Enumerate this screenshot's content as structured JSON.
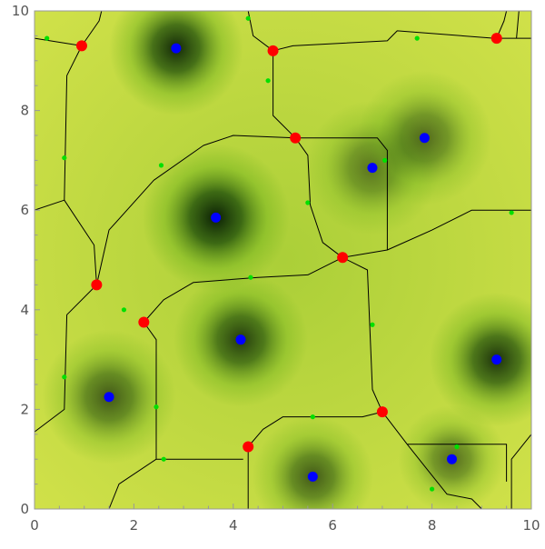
{
  "chart_data": {
    "type": "scatter",
    "title": "",
    "xlabel": "",
    "ylabel": "",
    "xlim": [
      0,
      10
    ],
    "ylim": [
      0,
      10
    ],
    "x_ticks": [
      "0",
      "2",
      "4",
      "6",
      "8",
      "10"
    ],
    "y_ticks": [
      "0",
      "2",
      "4",
      "6",
      "8",
      "10"
    ],
    "grid": false,
    "background": "yellow-green-black density field",
    "colors": {
      "yellow": "#f4f25a",
      "green": "#6fb21c",
      "dark": "#0b1f05",
      "maxima": "#0000ff",
      "saddles": "#ff0000",
      "minima": "#00e000",
      "ridge_lines": "#000000",
      "frame": "#999999"
    },
    "series": [
      {
        "marker": "blue-dot",
        "points": [
          [
            2.85,
            9.25
          ],
          [
            3.65,
            5.85
          ],
          [
            4.15,
            3.4
          ],
          [
            1.5,
            2.25
          ],
          [
            5.6,
            0.65
          ],
          [
            6.8,
            6.85
          ],
          [
            7.85,
            7.45
          ],
          [
            9.3,
            3.0
          ],
          [
            8.4,
            1.0
          ]
        ]
      },
      {
        "marker": "red-dot",
        "points": [
          [
            0.95,
            9.3
          ],
          [
            4.8,
            9.2
          ],
          [
            9.3,
            9.45
          ],
          [
            5.25,
            7.45
          ],
          [
            1.25,
            4.5
          ],
          [
            2.2,
            3.75
          ],
          [
            6.2,
            5.05
          ],
          [
            7.0,
            1.95
          ],
          [
            4.3,
            1.25
          ]
        ]
      },
      {
        "marker": "green-dot",
        "points": [
          [
            0.25,
            9.45
          ],
          [
            4.3,
            9.85
          ],
          [
            7.7,
            9.45
          ],
          [
            4.7,
            8.6
          ],
          [
            0.6,
            7.05
          ],
          [
            2.55,
            6.9
          ],
          [
            7.05,
            7.0
          ],
          [
            5.5,
            6.15
          ],
          [
            9.6,
            5.95
          ],
          [
            4.35,
            4.65
          ],
          [
            1.8,
            4.0
          ],
          [
            6.8,
            3.7
          ],
          [
            0.6,
            2.65
          ],
          [
            2.45,
            2.05
          ],
          [
            5.6,
            1.85
          ],
          [
            2.6,
            1.0
          ],
          [
            8.5,
            1.25
          ],
          [
            8.0,
            0.4
          ]
        ]
      }
    ],
    "ridge_lines": [
      [
        [
          0,
          9.45
        ],
        [
          0.95,
          9.3
        ],
        [
          1.3,
          9.8
        ],
        [
          1.35,
          10.0
        ]
      ],
      [
        [
          0.95,
          9.3
        ],
        [
          0.65,
          8.7
        ],
        [
          0.6,
          6.2
        ],
        [
          0,
          6.0
        ]
      ],
      [
        [
          0.6,
          6.2
        ],
        [
          1.2,
          5.3
        ],
        [
          1.25,
          4.5
        ]
      ],
      [
        [
          1.25,
          4.5
        ],
        [
          0.65,
          3.9
        ],
        [
          0.6,
          2.0
        ],
        [
          0,
          1.55
        ]
      ],
      [
        [
          1.25,
          4.5
        ],
        [
          1.5,
          5.6
        ],
        [
          2.4,
          6.6
        ],
        [
          3.4,
          7.3
        ],
        [
          4.0,
          7.5
        ],
        [
          5.25,
          7.45
        ]
      ],
      [
        [
          5.25,
          7.45
        ],
        [
          6.9,
          7.45
        ],
        [
          7.1,
          7.2
        ],
        [
          7.1,
          5.2
        ]
      ],
      [
        [
          5.25,
          7.45
        ],
        [
          5.5,
          7.1
        ],
        [
          5.55,
          6.1
        ],
        [
          5.8,
          5.35
        ],
        [
          6.2,
          5.05
        ]
      ],
      [
        [
          5.25,
          7.45
        ],
        [
          4.8,
          7.9
        ],
        [
          4.8,
          9.2
        ]
      ],
      [
        [
          4.8,
          9.2
        ],
        [
          4.4,
          9.5
        ],
        [
          4.3,
          10.0
        ]
      ],
      [
        [
          4.8,
          9.2
        ],
        [
          5.2,
          9.3
        ],
        [
          7.1,
          9.4
        ],
        [
          7.3,
          9.6
        ],
        [
          9.25,
          9.45
        ],
        [
          10.0,
          9.45
        ]
      ],
      [
        [
          9.3,
          9.45
        ],
        [
          9.45,
          9.8
        ],
        [
          9.5,
          10.0
        ]
      ],
      [
        [
          9.7,
          9.45
        ],
        [
          9.75,
          10.0
        ]
      ],
      [
        [
          6.2,
          5.05
        ],
        [
          7.1,
          5.2
        ],
        [
          8.0,
          5.6
        ],
        [
          8.8,
          6.0
        ],
        [
          10.0,
          6.0
        ]
      ],
      [
        [
          6.2,
          5.05
        ],
        [
          5.5,
          4.7
        ],
        [
          4.5,
          4.65
        ],
        [
          3.2,
          4.55
        ],
        [
          2.6,
          4.2
        ],
        [
          2.2,
          3.75
        ]
      ],
      [
        [
          2.2,
          3.75
        ],
        [
          2.45,
          3.4
        ],
        [
          2.45,
          1.0
        ],
        [
          4.2,
          1.0
        ]
      ],
      [
        [
          6.2,
          5.05
        ],
        [
          6.7,
          4.8
        ],
        [
          6.8,
          2.4
        ],
        [
          7.0,
          1.95
        ]
      ],
      [
        [
          7.0,
          1.95
        ],
        [
          6.6,
          1.85
        ],
        [
          5.0,
          1.85
        ],
        [
          4.6,
          1.6
        ],
        [
          4.3,
          1.25
        ]
      ],
      [
        [
          4.3,
          1.25
        ],
        [
          4.3,
          0.0
        ]
      ],
      [
        [
          2.45,
          1.0
        ],
        [
          1.7,
          0.5
        ],
        [
          1.5,
          0.0
        ]
      ],
      [
        [
          7.0,
          1.95
        ],
        [
          7.5,
          1.3
        ],
        [
          9.5,
          1.3
        ],
        [
          9.5,
          0.55
        ]
      ],
      [
        [
          7.5,
          1.3
        ],
        [
          7.9,
          0.8
        ],
        [
          8.3,
          0.3
        ],
        [
          8.8,
          0.2
        ],
        [
          9.0,
          0.0
        ]
      ],
      [
        [
          9.6,
          0.0
        ],
        [
          9.6,
          1.0
        ],
        [
          10.0,
          1.5
        ]
      ]
    ],
    "field_peaks": [
      {
        "x": 2.85,
        "y": 9.25,
        "level": 0.95,
        "r": 1.0
      },
      {
        "x": 3.65,
        "y": 5.85,
        "level": 1.0,
        "r": 1.1
      },
      {
        "x": 4.15,
        "y": 3.4,
        "level": 0.85,
        "r": 1.0
      },
      {
        "x": 1.5,
        "y": 2.25,
        "level": 0.7,
        "r": 1.0
      },
      {
        "x": 5.6,
        "y": 0.65,
        "level": 0.7,
        "r": 0.9
      },
      {
        "x": 6.8,
        "y": 6.85,
        "level": 0.55,
        "r": 1.0
      },
      {
        "x": 7.85,
        "y": 7.45,
        "level": 0.6,
        "r": 1.0
      },
      {
        "x": 9.3,
        "y": 3.0,
        "level": 0.9,
        "r": 1.0
      },
      {
        "x": 8.4,
        "y": 1.0,
        "level": 0.6,
        "r": 0.8
      }
    ]
  }
}
